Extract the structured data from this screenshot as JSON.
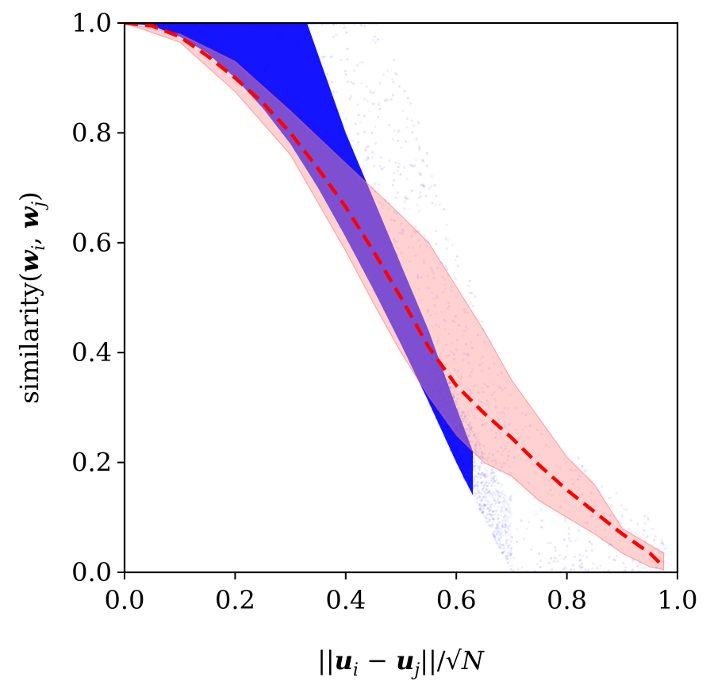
{
  "chart_data": {
    "type": "scatter",
    "xlabel_parts": [
      "||",
      "u",
      "i",
      " − ",
      "u",
      "j",
      "||/√",
      "N"
    ],
    "ylabel_parts": [
      "similarity(",
      "w",
      "i",
      ", ",
      "w",
      "j",
      ")"
    ],
    "xlim": [
      0.0,
      1.0
    ],
    "ylim": [
      0.0,
      1.0
    ],
    "xticks": [
      "0.0",
      "0.2",
      "0.4",
      "0.6",
      "0.8",
      "1.0"
    ],
    "yticks": [
      "0.0",
      "0.2",
      "0.4",
      "0.6",
      "0.8",
      "1.0"
    ],
    "grid": false,
    "series": [
      {
        "kind": "scatter-cloud",
        "color": "#0000ff",
        "lower_envelope": [
          [
            0.0,
            1.0
          ],
          [
            0.05,
            0.995
          ],
          [
            0.1,
            0.975
          ],
          [
            0.15,
            0.945
          ],
          [
            0.2,
            0.9
          ],
          [
            0.25,
            0.845
          ],
          [
            0.3,
            0.78
          ],
          [
            0.35,
            0.7
          ],
          [
            0.4,
            0.61
          ],
          [
            0.45,
            0.515
          ],
          [
            0.5,
            0.415
          ],
          [
            0.55,
            0.31
          ],
          [
            0.6,
            0.2
          ],
          [
            0.65,
            0.1
          ],
          [
            0.7,
            0.0
          ]
        ],
        "dense_upper_envelope": [
          [
            0.0,
            1.0
          ],
          [
            0.33,
            1.0
          ],
          [
            0.4,
            0.8
          ],
          [
            0.45,
            0.68
          ],
          [
            0.5,
            0.56
          ],
          [
            0.55,
            0.44
          ],
          [
            0.6,
            0.3
          ],
          [
            0.63,
            0.22
          ]
        ]
      },
      {
        "kind": "mean-line",
        "color": "#ff0000",
        "style": "dashed",
        "points": [
          [
            0.0,
            1.0
          ],
          [
            0.05,
            0.995
          ],
          [
            0.1,
            0.975
          ],
          [
            0.15,
            0.94
          ],
          [
            0.2,
            0.9
          ],
          [
            0.25,
            0.855
          ],
          [
            0.3,
            0.8
          ],
          [
            0.35,
            0.735
          ],
          [
            0.4,
            0.665
          ],
          [
            0.45,
            0.585
          ],
          [
            0.5,
            0.5
          ],
          [
            0.55,
            0.41
          ],
          [
            0.6,
            0.34
          ],
          [
            0.65,
            0.29
          ],
          [
            0.7,
            0.245
          ],
          [
            0.75,
            0.195
          ],
          [
            0.8,
            0.15
          ],
          [
            0.85,
            0.11
          ],
          [
            0.9,
            0.07
          ],
          [
            0.95,
            0.035
          ],
          [
            0.975,
            0.01
          ]
        ]
      },
      {
        "kind": "band",
        "color": "#ff9999",
        "upper": [
          [
            0.0,
            1.0
          ],
          [
            0.1,
            0.98
          ],
          [
            0.2,
            0.93
          ],
          [
            0.3,
            0.84
          ],
          [
            0.4,
            0.745
          ],
          [
            0.5,
            0.65
          ],
          [
            0.55,
            0.6
          ],
          [
            0.6,
            0.52
          ],
          [
            0.65,
            0.44
          ],
          [
            0.7,
            0.35
          ],
          [
            0.75,
            0.28
          ],
          [
            0.8,
            0.21
          ],
          [
            0.85,
            0.16
          ],
          [
            0.9,
            0.08
          ],
          [
            0.95,
            0.05
          ],
          [
            0.975,
            0.035
          ]
        ],
        "lower": [
          [
            0.0,
            1.0
          ],
          [
            0.1,
            0.965
          ],
          [
            0.2,
            0.875
          ],
          [
            0.3,
            0.76
          ],
          [
            0.4,
            0.585
          ],
          [
            0.45,
            0.49
          ],
          [
            0.5,
            0.4
          ],
          [
            0.55,
            0.32
          ],
          [
            0.6,
            0.25
          ],
          [
            0.65,
            0.2
          ],
          [
            0.7,
            0.175
          ],
          [
            0.75,
            0.13
          ],
          [
            0.8,
            0.1
          ],
          [
            0.85,
            0.07
          ],
          [
            0.9,
            0.035
          ],
          [
            0.95,
            0.01
          ],
          [
            0.975,
            0.005
          ]
        ]
      }
    ]
  }
}
